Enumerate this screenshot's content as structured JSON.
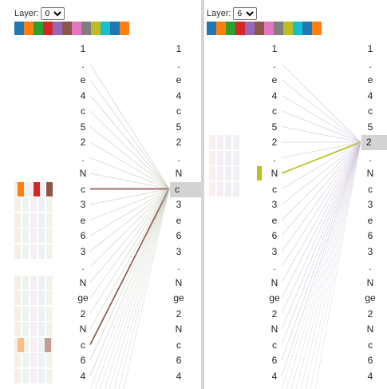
{
  "left_panel": {
    "layer_label": "Layer:",
    "layer_value": "0",
    "selected_index": 9
  },
  "right_panel": {
    "layer_label": "Layer:",
    "layer_value": "6",
    "selected_index": 6
  },
  "head_colors": [
    "#1f77b4",
    "#ff7f0e",
    "#2ca02c",
    "#d62728",
    "#9467bd",
    "#8c564b",
    "#e377c2",
    "#7f7f7f",
    "#bcbd22",
    "#17becf",
    "#1f77b4",
    "#ff7f0e"
  ],
  "tokens": [
    "1",
    ".",
    "e",
    "4",
    "c",
    "5",
    "2",
    ".",
    "N",
    "c",
    "3",
    "e",
    "6",
    "3",
    ".",
    "N",
    "ge",
    "2",
    "N",
    "c",
    "6",
    "4"
  ]
}
